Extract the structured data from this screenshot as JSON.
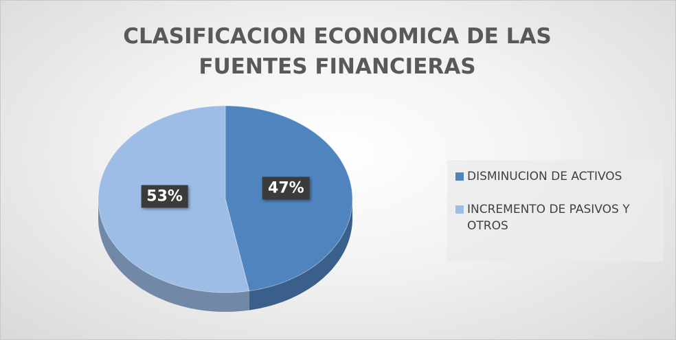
{
  "chart_data": {
    "type": "pie",
    "title": "CLASIFICACION ECONOMICA DE LAS FUENTES FINANCIERAS",
    "categories": [
      "DISMINUCION DE ACTIVOS",
      "INCREMENTO DE PASIVOS Y OTROS"
    ],
    "values": [
      47,
      53
    ],
    "value_labels": [
      "47%",
      "53%"
    ],
    "colors": [
      "#4f84bf",
      "#9dbde6"
    ],
    "legend": "right"
  }
}
